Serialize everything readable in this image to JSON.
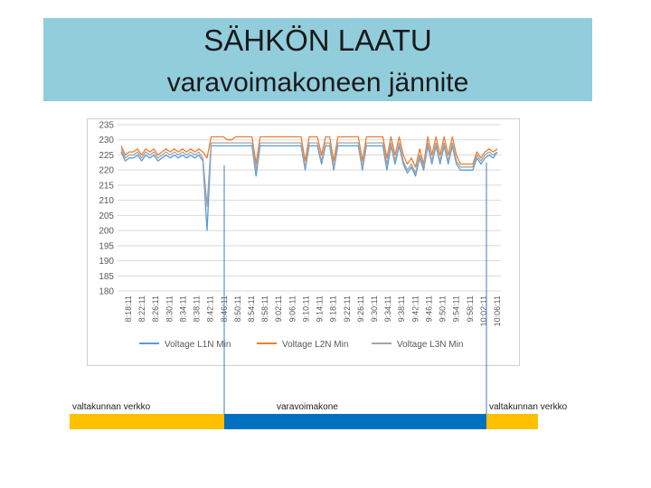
{
  "header": {
    "title": "SÄHKÖN LAATU",
    "subtitle": "varavoimakoneen jännite"
  },
  "colors": {
    "header_band": "#92cddc",
    "series_l1n": "#5b9bd5",
    "series_l2n": "#ed7d31",
    "series_l3n": "#a5a5a5",
    "grid": "#d9d9d9",
    "segment_grid": "#ffc000",
    "segment_generator": "#0070c0",
    "marker_line": "#4a7bbf"
  },
  "segments": [
    {
      "label": "valtakunnan verkko",
      "color": "#ffc000"
    },
    {
      "label": "varavoimakone",
      "color": "#0070c0"
    },
    {
      "label": "valtakunnan verkko",
      "color": "#ffc000"
    }
  ],
  "chart_data": {
    "type": "line",
    "title": "",
    "xlabel": "",
    "ylabel": "",
    "ylim": [
      180,
      235
    ],
    "yticks": [
      "180",
      "185",
      "190",
      "195",
      "200",
      "205",
      "210",
      "215",
      "220",
      "225",
      "230",
      "235"
    ],
    "xticks": [
      "8:18:11",
      "8:22:11",
      "8:26:11",
      "8:30:11",
      "8:34:11",
      "8:38:11",
      "8:42:11",
      "8:46:11",
      "8:50:11",
      "8:54:11",
      "8:58:11",
      "9:02:11",
      "9:06:11",
      "9:10:11",
      "9:14:11",
      "9:18:11",
      "9:22:11",
      "9:26:11",
      "9:30:11",
      "9:34:11",
      "9:38:11",
      "9:42:11",
      "9:46:11",
      "9:50:11",
      "9:54:11",
      "9:58:11",
      "10:02:11",
      "10:06:11"
    ],
    "grid": true,
    "legend_position": "bottom",
    "series": [
      {
        "name": "Voltage L1N Min",
        "color": "#5b9bd5",
        "values": [
          226,
          223,
          224,
          224,
          225,
          223,
          225,
          224,
          225,
          223,
          224,
          225,
          224,
          225,
          224,
          225,
          224,
          225,
          224,
          225,
          223,
          200,
          228,
          228,
          228,
          228,
          228,
          228,
          228,
          228,
          228,
          228,
          228,
          218,
          228,
          228,
          228,
          228,
          228,
          228,
          228,
          228,
          228,
          228,
          228,
          220,
          228,
          228,
          228,
          222,
          228,
          228,
          220,
          228,
          228,
          228,
          228,
          228,
          228,
          220,
          228,
          228,
          228,
          228,
          228,
          220,
          228,
          222,
          228,
          222,
          219,
          221,
          218,
          224,
          220,
          228,
          222,
          228,
          222,
          228,
          222,
          228,
          222,
          220,
          220,
          220,
          220,
          224,
          222,
          224,
          225,
          224,
          226
        ]
      },
      {
        "name": "Voltage L2N Min",
        "color": "#ed7d31",
        "values": [
          228,
          225,
          226,
          226,
          227,
          225,
          227,
          226,
          227,
          225,
          226,
          227,
          226,
          227,
          226,
          227,
          226,
          227,
          226,
          227,
          226,
          224,
          231,
          231,
          231,
          231,
          230,
          230,
          231,
          231,
          231,
          231,
          231,
          222,
          231,
          231,
          231,
          231,
          231,
          231,
          231,
          231,
          231,
          231,
          231,
          223,
          231,
          231,
          231,
          225,
          231,
          231,
          223,
          231,
          231,
          231,
          231,
          231,
          231,
          223,
          231,
          231,
          231,
          231,
          231,
          224,
          231,
          225,
          231,
          225,
          222,
          224,
          221,
          227,
          222,
          231,
          225,
          231,
          225,
          231,
          225,
          231,
          225,
          222,
          222,
          222,
          222,
          226,
          224,
          226,
          227,
          226,
          227
        ]
      },
      {
        "name": "Voltage L3N Min",
        "color": "#a5a5a5",
        "values": [
          227,
          224,
          225,
          225,
          226,
          224,
          226,
          225,
          226,
          224,
          225,
          226,
          225,
          226,
          225,
          226,
          225,
          226,
          225,
          226,
          224,
          208,
          229,
          229,
          229,
          229,
          229,
          229,
          229,
          229,
          229,
          229,
          229,
          220,
          229,
          229,
          229,
          229,
          229,
          229,
          229,
          229,
          229,
          229,
          229,
          221,
          229,
          229,
          229,
          223,
          229,
          229,
          221,
          229,
          229,
          229,
          229,
          229,
          229,
          221,
          229,
          229,
          229,
          229,
          229,
          222,
          229,
          223,
          229,
          223,
          220,
          222,
          219,
          225,
          221,
          229,
          223,
          229,
          223,
          229,
          223,
          229,
          223,
          221,
          221,
          221,
          221,
          225,
          223,
          225,
          226,
          225,
          226
        ]
      }
    ]
  }
}
